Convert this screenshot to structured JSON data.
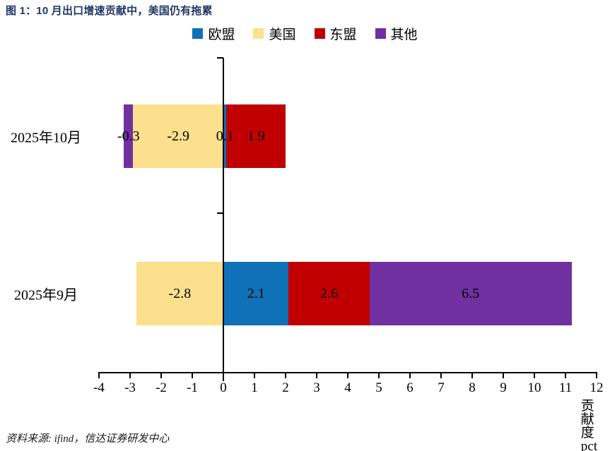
{
  "title": "图 1：10 月出口增速贡献中，美国仍有拖累",
  "source": "资料来源: ifind，信达证券研发中心",
  "colors": {
    "title_navy": "#1F3864",
    "axis_black": "#000000",
    "eu_blue": "#1070B8",
    "us_yellow": "#FCE08D",
    "asean_red": "#C00000",
    "other_purple": "#7030A0"
  },
  "chart_data": {
    "type": "bar",
    "orientation": "horizontal",
    "stacked": true,
    "title": "图 1：10 月出口增速贡献中，美国仍有拖累",
    "categories": [
      "2025年10月",
      "2025年9月"
    ],
    "series": [
      {
        "name": "欧盟",
        "color": "#1070B8",
        "values": [
          0.1,
          2.1
        ]
      },
      {
        "name": "美国",
        "color": "#FCE08D",
        "values": [
          -2.9,
          -2.8
        ]
      },
      {
        "name": "东盟",
        "color": "#C00000",
        "values": [
          1.9,
          2.6
        ]
      },
      {
        "name": "其他",
        "color": "#7030A0",
        "values": [
          -0.3,
          6.5
        ]
      }
    ],
    "data_labels": true,
    "xlabel": "贡献度pct",
    "ylabel": "",
    "xlim": [
      -4,
      12
    ],
    "x_ticks": [
      -4,
      -3,
      -2,
      -1,
      0,
      1,
      2,
      3,
      4,
      5,
      6,
      7,
      8,
      9,
      10,
      11,
      12
    ],
    "grid": false,
    "legend_position": "top"
  }
}
